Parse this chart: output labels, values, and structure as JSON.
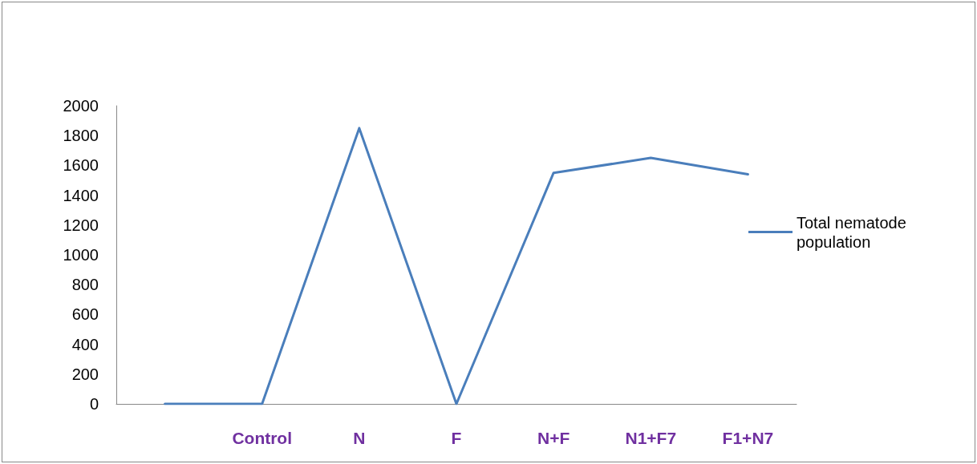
{
  "chart_data": {
    "type": "line",
    "categories": [
      null,
      "Control",
      "N",
      "F",
      "N+F",
      "N1+F7",
      "F1+N7"
    ],
    "series": [
      {
        "name": "Total nematode population",
        "color": "#4a7ebb",
        "values": [
          0,
          0,
          1850,
          0,
          1550,
          1650,
          1540
        ]
      }
    ],
    "ylim": [
      0,
      2000
    ],
    "yticks": [
      0,
      200,
      400,
      600,
      800,
      1000,
      1200,
      1400,
      1600,
      1800,
      2000
    ],
    "grid": false,
    "legend": "right",
    "marker": "none",
    "line_style": "solid"
  }
}
